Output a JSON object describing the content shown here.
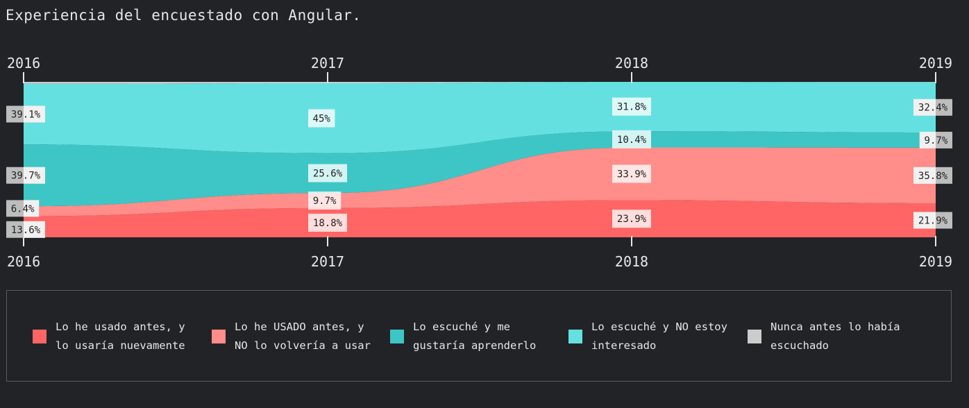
{
  "title": "Experiencia del encuestado con Angular.",
  "chart_data": {
    "type": "area",
    "stacked": true,
    "normalized": true,
    "x": [
      "2016",
      "2017",
      "2018",
      "2019"
    ],
    "ylim": [
      0,
      100
    ],
    "series": [
      {
        "name": "Lo he usado antes, y lo usaría nuevamente",
        "color": "#ff6565",
        "values": [
          13.6,
          18.8,
          23.9,
          21.9
        ]
      },
      {
        "name": "Lo he USADO antes, y NO lo volvería a usar",
        "color": "#ff8d8a",
        "values": [
          6.4,
          9.7,
          33.9,
          35.8
        ]
      },
      {
        "name": "Lo escuché y me gustaría aprenderlo",
        "color": "#3ec6c6",
        "values": [
          39.7,
          25.6,
          10.4,
          9.7
        ]
      },
      {
        "name": "Lo escuché y NO estoy interesado",
        "color": "#65e0e0",
        "values": [
          39.1,
          45,
          31.8,
          32.4
        ]
      },
      {
        "name": "Nunca antes lo había escuchado",
        "color": "#cccccc",
        "values": [
          1.2,
          0.9,
          0.0,
          0.2
        ]
      }
    ],
    "labels": [
      [
        "13.6%",
        "18.8%",
        "23.9%",
        "21.9%"
      ],
      [
        "6.4%",
        "9.7%",
        "33.9%",
        "35.8%"
      ],
      [
        "39.7%",
        "25.6%",
        "10.4%",
        "9.7%"
      ],
      [
        "39.1%",
        "45%",
        "31.8%",
        "32.4%"
      ]
    ],
    "legend_position": "bottom",
    "grid": false
  },
  "legend": {
    "items": [
      {
        "label": "Lo he usado antes, y lo usaría nuevamente",
        "color": "#ff6565"
      },
      {
        "label": "Lo he USADO antes, y NO lo volvería a usar",
        "color": "#ff8d8a"
      },
      {
        "label": "Lo escuché y me gustaría aprenderlo",
        "color": "#3ec6c6"
      },
      {
        "label": "Lo escuché y NO estoy interesado",
        "color": "#65e0e0"
      },
      {
        "label": "Nunca antes lo había escuchado",
        "color": "#cccccc"
      }
    ]
  }
}
